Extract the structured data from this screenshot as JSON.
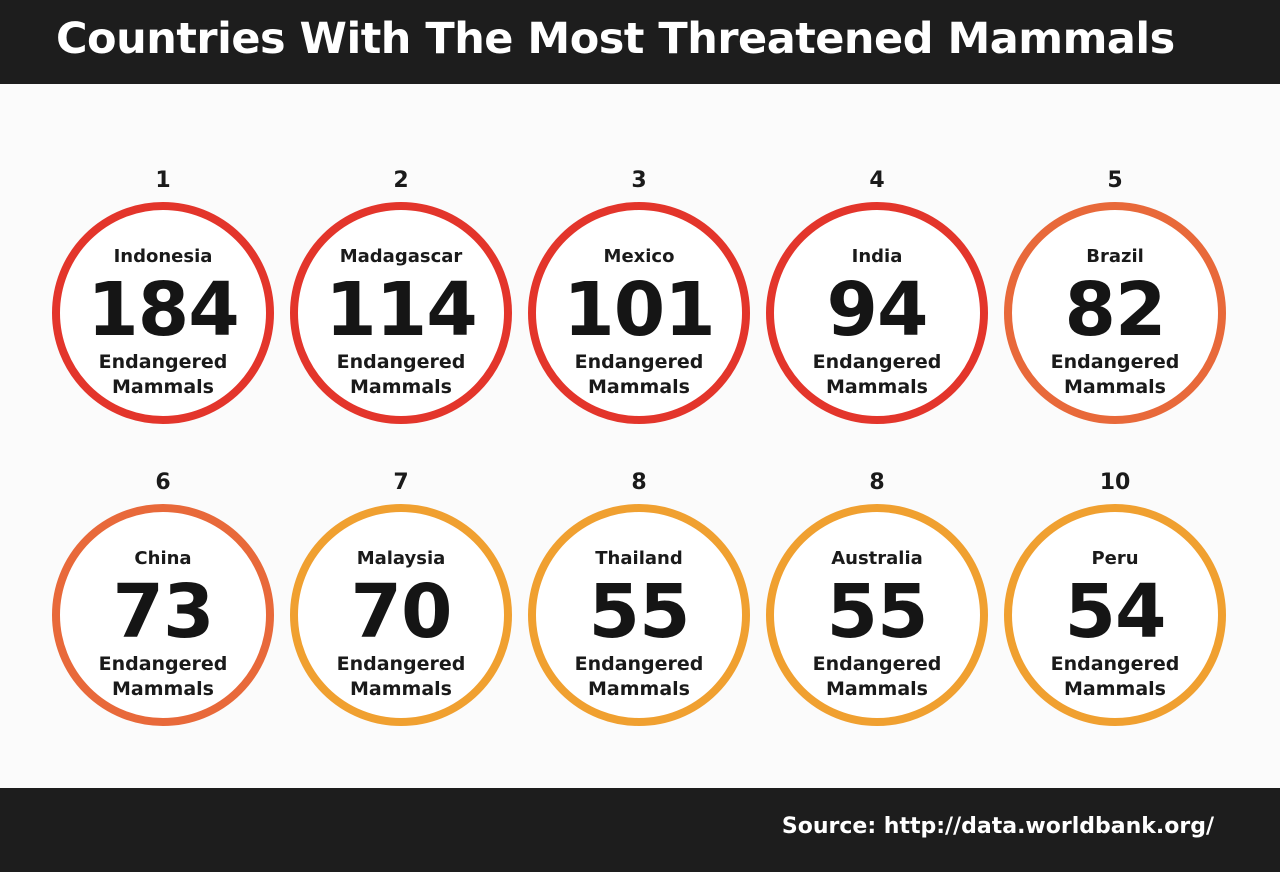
{
  "header": {
    "title": "Countries With The Most Threatened Mammals"
  },
  "footer": {
    "source": "Source: http://data.worldbank.org/"
  },
  "colors": {
    "red": "#e3352b",
    "orange_red": "#e8693a",
    "orange": "#f0a030",
    "header_bg": "#1d1d1d"
  },
  "chart_data": {
    "type": "table",
    "title": "Countries With The Most Threatened Mammals",
    "unit_label_line1": "Endangered",
    "unit_label_line2": "Mammals",
    "items": [
      {
        "rank": "1",
        "country": "Indonesia",
        "value": 184,
        "color": "#e3352b"
      },
      {
        "rank": "2",
        "country": "Madagascar",
        "value": 114,
        "color": "#e3352b"
      },
      {
        "rank": "3",
        "country": "Mexico",
        "value": 101,
        "color": "#e3352b"
      },
      {
        "rank": "4",
        "country": "India",
        "value": 94,
        "color": "#e3352b"
      },
      {
        "rank": "5",
        "country": "Brazil",
        "value": 82,
        "color": "#e8693a"
      },
      {
        "rank": "6",
        "country": "China",
        "value": 73,
        "color": "#e8693a"
      },
      {
        "rank": "7",
        "country": "Malaysia",
        "value": 70,
        "color": "#f0a030"
      },
      {
        "rank": "8",
        "country": "Thailand",
        "value": 55,
        "color": "#f0a030"
      },
      {
        "rank": "8",
        "country": "Australia",
        "value": 55,
        "color": "#f0a030"
      },
      {
        "rank": "10",
        "country": "Peru",
        "value": 54,
        "color": "#f0a030"
      }
    ]
  }
}
